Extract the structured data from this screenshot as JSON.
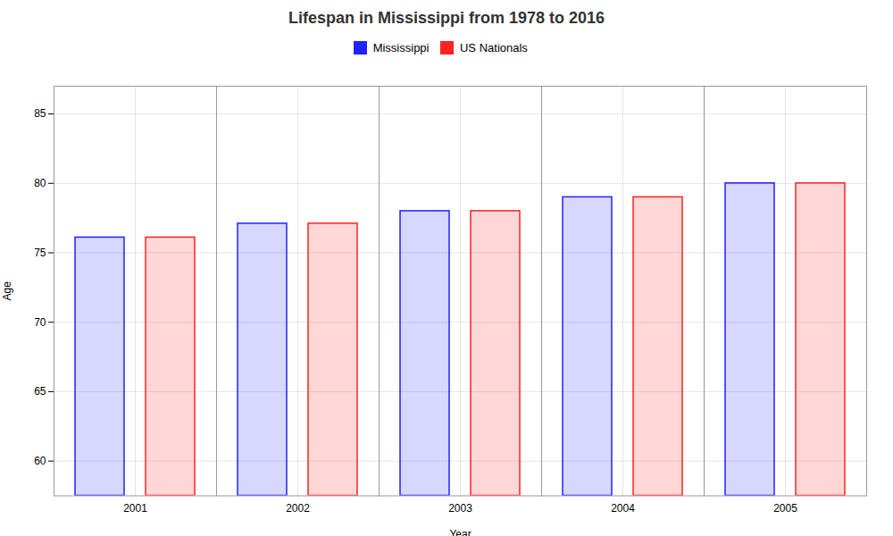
{
  "chart_data": {
    "type": "bar",
    "title": "Lifespan in Mississippi from 1978 to 2016",
    "xlabel": "Year",
    "ylabel": "Age",
    "categories": [
      "2001",
      "2002",
      "2003",
      "2004",
      "2005"
    ],
    "series": [
      {
        "name": "Mississippi",
        "color": "#2222ff",
        "values": [
          76.1,
          77.1,
          78.0,
          79.0,
          80.0
        ]
      },
      {
        "name": "US Nationals",
        "color": "#ff2222",
        "values": [
          76.1,
          77.1,
          78.0,
          79.0,
          80.0
        ]
      }
    ],
    "ylim": [
      57.5,
      87
    ],
    "yticks": [
      60,
      65,
      70,
      75,
      80,
      85
    ],
    "grid": true,
    "legend": "upper center"
  }
}
